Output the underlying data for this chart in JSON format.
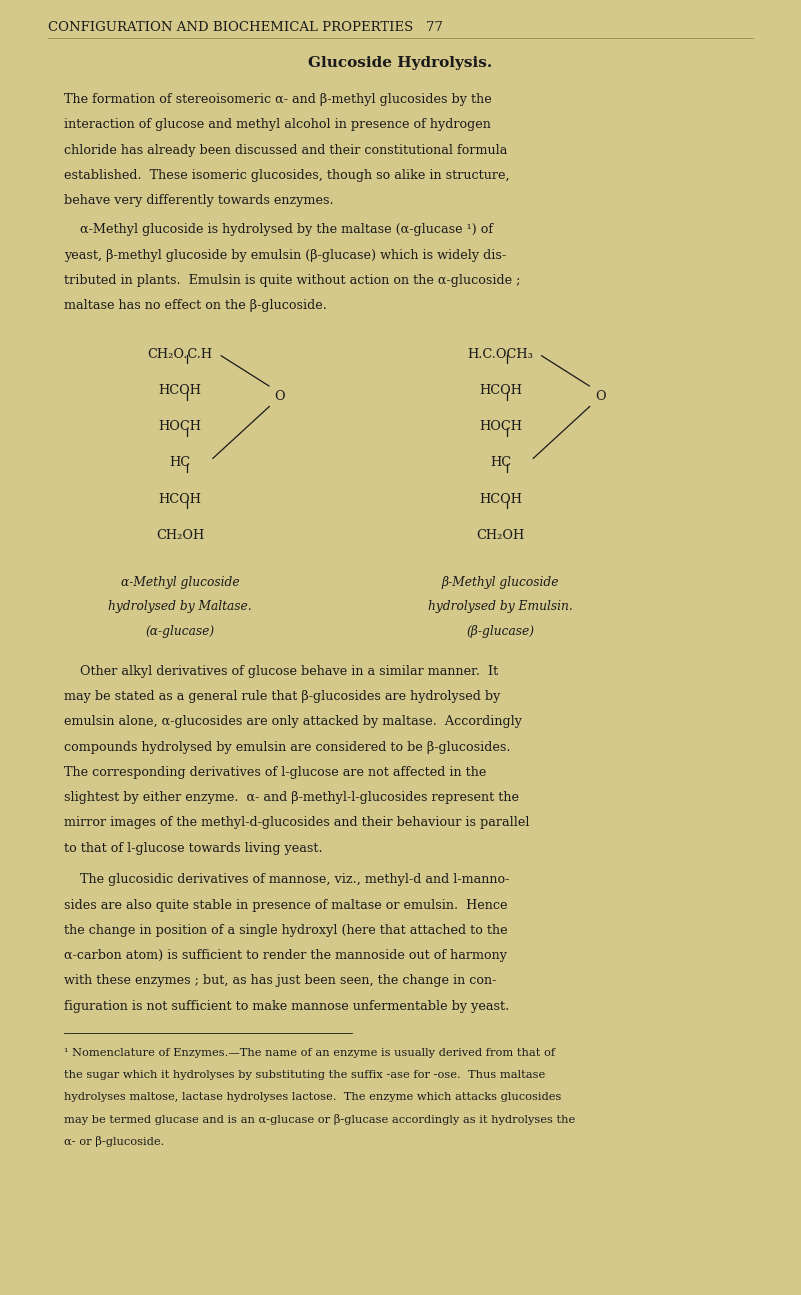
{
  "bg_color": "#d4c98a",
  "text_color": "#1a1a1a",
  "page_width": 8.01,
  "page_height": 12.95,
  "header_text": "CONFIGURATION AND BIOCHEMICAL PROPERTIES   77",
  "section_title": "Glucoside Hydrolysis.",
  "left_struct_items": [
    "CH₂O.C.H",
    "HCOH",
    "HOCH",
    "HC",
    "HCOH",
    "CH₂OH"
  ],
  "right_struct_items": [
    "H.C.OCH₃",
    "HCOH",
    "HOCH",
    "HC",
    "HCOH",
    "CH₂OH"
  ],
  "left_captions": [
    "α-Methyl glucoside",
    "hydrolysed by Maltase.",
    "(α-glucase)"
  ],
  "right_captions": [
    "β-Methyl glucoside",
    "hydrolysed by Emulsin.",
    "(β-glucase)"
  ]
}
